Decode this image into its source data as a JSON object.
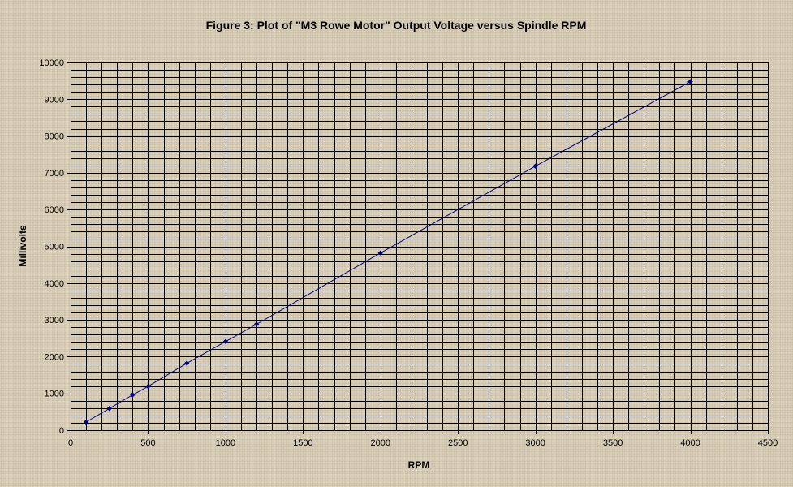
{
  "chart_data": {
    "type": "scatter",
    "title": "Figure 3: Plot of \"M3 Rowe Motor\" Output Voltage versus Spindle RPM",
    "xlabel": "RPM",
    "ylabel": "Millivolts",
    "xlim": [
      0,
      4500
    ],
    "ylim": [
      0,
      10000
    ],
    "x_major_step": 500,
    "y_major_step": 1000,
    "x_minor_step": 100,
    "y_minor_step": 200,
    "x_tick_labels": [
      "0",
      "500",
      "1000",
      "1500",
      "2000",
      "2500",
      "3000",
      "3500",
      "4000",
      "4500"
    ],
    "y_tick_labels": [
      "0",
      "1000",
      "2000",
      "3000",
      "4000",
      "5000",
      "6000",
      "7000",
      "8000",
      "9000",
      "10000"
    ],
    "grid": true,
    "legend": false,
    "series": [
      {
        "color": "#000080",
        "marker": "diamond",
        "line": true,
        "x": [
          100,
          250,
          400,
          500,
          750,
          1000,
          1200,
          2000,
          3000,
          4000
        ],
        "y": [
          220,
          590,
          960,
          1190,
          1820,
          2410,
          2880,
          4820,
          7180,
          9480
        ]
      }
    ]
  }
}
